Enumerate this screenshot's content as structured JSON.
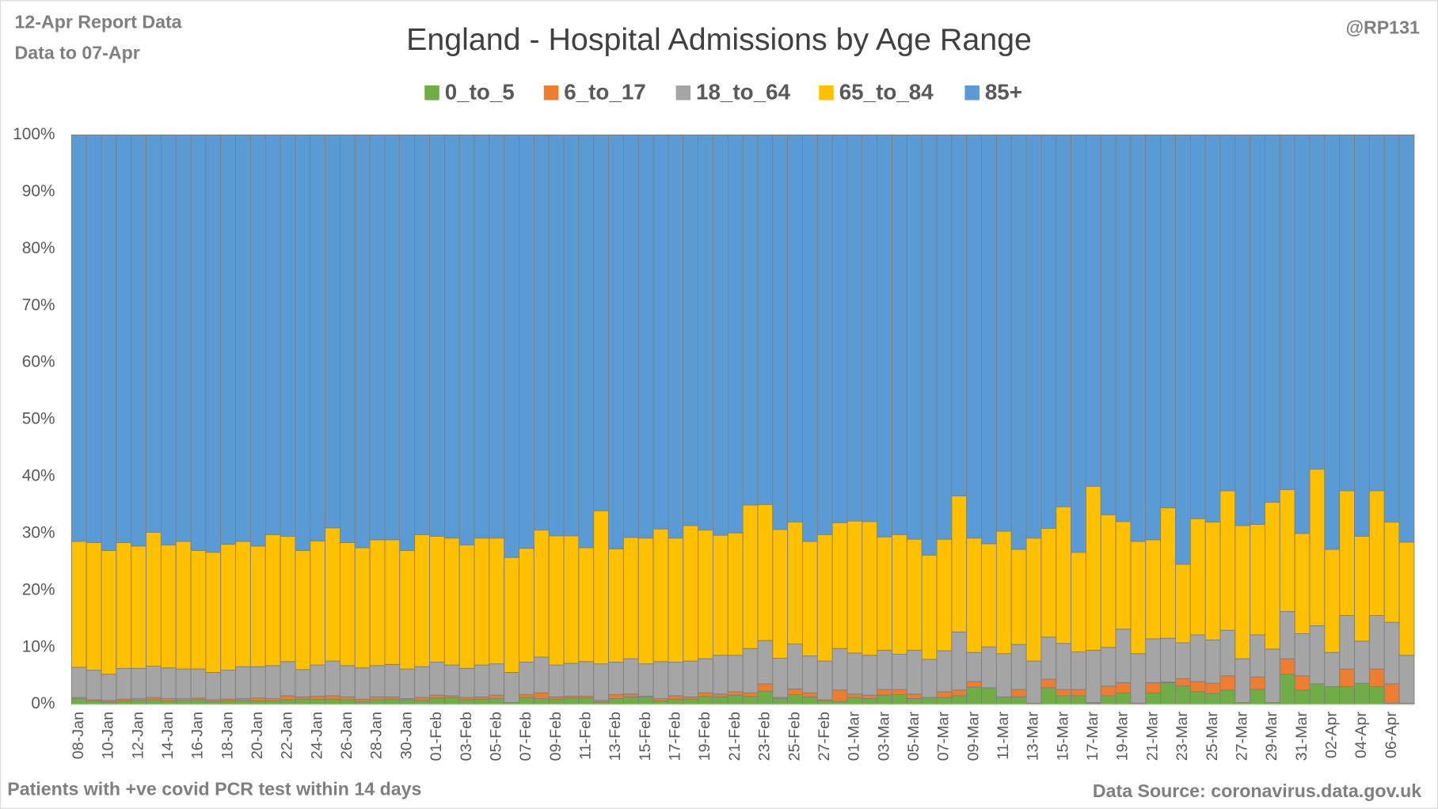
{
  "chart_data": {
    "type": "stacked_bar_percent",
    "title": "England - Hospital Admissions by Age Range",
    "report_note": "12-Apr Report Data",
    "data_note": "Data to 07-Apr",
    "author": "@RP131",
    "footnote": "Patients with  +ve covid PCR test within 14 days",
    "source": "Data Source: coronavirus.data.gov.uk",
    "categories": [
      "08-Jan",
      null,
      "10-Jan",
      null,
      "12-Jan",
      null,
      "14-Jan",
      null,
      "16-Jan",
      null,
      "18-Jan",
      null,
      "20-Jan",
      null,
      "22-Jan",
      null,
      "24-Jan",
      null,
      "26-Jan",
      null,
      "28-Jan",
      null,
      "30-Jan",
      null,
      "01-Feb",
      null,
      "03-Feb",
      null,
      "05-Feb",
      null,
      "07-Feb",
      null,
      "09-Feb",
      null,
      "11-Feb",
      null,
      "13-Feb",
      null,
      "15-Feb",
      null,
      "17-Feb",
      null,
      "19-Feb",
      null,
      "21-Feb",
      null,
      "23-Feb",
      null,
      "25-Feb",
      null,
      "27-Feb",
      null,
      "01-Mar",
      null,
      "03-Mar",
      null,
      "05-Mar",
      null,
      "07-Mar",
      null,
      "09-Mar",
      null,
      "11-Mar",
      null,
      "13-Mar",
      null,
      "15-Mar",
      null,
      "17-Mar",
      null,
      "19-Mar",
      null,
      "21-Mar",
      null,
      "23-Mar",
      null,
      "25-Mar",
      null,
      "27-Mar",
      null,
      "29-Mar",
      null,
      "31-Mar",
      null,
      "02-Apr",
      null,
      "04-Apr",
      null,
      "06-Apr",
      null
    ],
    "series": [
      {
        "name": "0_to_5",
        "color": "#70ad47",
        "values": [
          1.0,
          0.6,
          0.4,
          0.6,
          0.7,
          0.8,
          0.6,
          0.7,
          0.8,
          0.5,
          0.6,
          0.7,
          0.6,
          0.6,
          0.8,
          0.9,
          0.9,
          0.9,
          0.8,
          0.5,
          0.8,
          0.9,
          0.8,
          0.7,
          1.1,
          1.2,
          0.8,
          0.9,
          1.0,
          0.3,
          1.2,
          1.0,
          0.9,
          1.1,
          1.1,
          0.4,
          1.0,
          1.3,
          1.3,
          0.6,
          0.9,
          0.9,
          1.4,
          1.3,
          1.6,
          1.4,
          2.3,
          1.0,
          1.7,
          1.3,
          0.6,
          0.5,
          1.2,
          1.0,
          1.6,
          1.7,
          1.0,
          1.2,
          1.2,
          1.5,
          3.0,
          2.9,
          1.3,
          1.3,
          0.2,
          2.9,
          1.5,
          1.5,
          0.2,
          1.5,
          2.0,
          0.2,
          2.0,
          3.8,
          3.2,
          2.2,
          1.9,
          2.5,
          0.3,
          2.6,
          0.3,
          5.3,
          2.5,
          3.6,
          3.1,
          3.1,
          3.7,
          3.1,
          0.2,
          0.2
        ]
      },
      {
        "name": "6_to_17",
        "color": "#ed7d31",
        "values": [
          0.2,
          0.2,
          0.3,
          0.3,
          0.3,
          0.4,
          0.4,
          0.3,
          0.3,
          0.3,
          0.3,
          0.3,
          0.5,
          0.4,
          0.7,
          0.4,
          0.5,
          0.6,
          0.5,
          0.4,
          0.5,
          0.4,
          0.2,
          0.5,
          0.5,
          0.3,
          0.4,
          0.4,
          0.6,
          0.0,
          0.5,
          1.0,
          0.4,
          0.3,
          0.3,
          0.3,
          0.7,
          0.5,
          0.1,
          0.4,
          0.6,
          0.4,
          0.6,
          0.5,
          0.6,
          0.6,
          1.3,
          0.2,
          1.0,
          0.7,
          0.2,
          2.0,
          0.6,
          0.6,
          1.0,
          0.9,
          0.8,
          0.0,
          1.0,
          1.0,
          1.0,
          0.0,
          0.0,
          1.3,
          0.0,
          1.5,
          1.1,
          1.1,
          0.1,
          1.7,
          1.8,
          0.0,
          1.8,
          0.1,
          1.3,
          1.8,
          1.8,
          2.5,
          0.0,
          2.2,
          0.0,
          2.7,
          2.5,
          0.0,
          0.0,
          3.1,
          0.0,
          3.1,
          3.4,
          0.0
        ]
      },
      {
        "name": "18_to_64",
        "color": "#a5a5a5",
        "values": [
          5.3,
          5.2,
          4.6,
          5.4,
          5.3,
          5.5,
          5.4,
          5.2,
          5.1,
          4.8,
          5.1,
          5.6,
          5.5,
          5.8,
          6.0,
          4.8,
          5.5,
          6.1,
          5.5,
          5.5,
          5.5,
          5.7,
          5.2,
          5.4,
          5.8,
          5.4,
          5.1,
          5.6,
          5.5,
          5.3,
          5.7,
          6.3,
          5.6,
          5.8,
          6.1,
          6.4,
          5.7,
          6.2,
          5.7,
          6.5,
          5.9,
          6.3,
          6.0,
          6.8,
          6.4,
          7.8,
          7.6,
          6.9,
          7.9,
          6.5,
          6.8,
          7.3,
          7.2,
          7.0,
          6.9,
          6.2,
          7.7,
          6.7,
          7.2,
          10.2,
          5.1,
          7.2,
          7.6,
          7.9,
          7.4,
          7.4,
          8.1,
          6.6,
          9.2,
          6.8,
          9.4,
          8.7,
          7.7,
          7.7,
          6.3,
          8.2,
          7.6,
          8.0,
          7.7,
          7.4,
          9.4,
          8.3,
          7.4,
          10.2,
          6.0,
          9.4,
          7.4,
          9.4,
          10.8,
          8.4
        ]
      },
      {
        "name": "65_to_84",
        "color": "#ffc000",
        "values": [
          22.1,
          22.4,
          21.7,
          22.1,
          21.5,
          23.5,
          21.6,
          22.4,
          20.8,
          21.1,
          22.1,
          22.0,
          21.2,
          23.0,
          22.0,
          20.9,
          21.8,
          23.4,
          21.6,
          21.1,
          22.1,
          21.9,
          20.8,
          23.2,
          22.1,
          22.3,
          21.7,
          22.3,
          22.1,
          20.2,
          20.0,
          22.3,
          22.7,
          22.4,
          20.0,
          26.9,
          19.9,
          21.3,
          22.1,
          23.3,
          21.8,
          23.8,
          22.6,
          21.1,
          21.5,
          25.2,
          23.9,
          22.6,
          21.4,
          20.1,
          22.2,
          22.1,
          23.2,
          23.5,
          19.9,
          21.0,
          19.5,
          18.3,
          19.6,
          23.9,
          20.1,
          18.1,
          21.5,
          16.7,
          21.6,
          19.1,
          24.0,
          17.5,
          28.8,
          23.3,
          18.9,
          19.7,
          17.4,
          22.9,
          13.8,
          20.4,
          20.7,
          24.5,
          23.4,
          19.4,
          25.8,
          21.4,
          17.6,
          27.5,
          18.1,
          21.9,
          18.4,
          21.9,
          17.6,
          19.9
        ]
      },
      {
        "name": "85+",
        "color": "#5b9bd5",
        "values": [
          71.4,
          71.6,
          73.0,
          71.6,
          72.2,
          69.8,
          72.0,
          71.4,
          73.0,
          73.3,
          71.9,
          71.4,
          72.2,
          70.2,
          70.5,
          73.0,
          71.3,
          69.0,
          71.6,
          72.5,
          71.1,
          71.1,
          73.0,
          70.2,
          70.5,
          70.8,
          72.0,
          70.8,
          70.8,
          74.2,
          72.6,
          69.4,
          70.4,
          70.4,
          72.5,
          66.0,
          72.7,
          70.7,
          70.8,
          69.2,
          70.8,
          68.6,
          69.4,
          70.3,
          69.9,
          65.0,
          64.9,
          69.3,
          68.0,
          71.4,
          70.2,
          68.1,
          67.8,
          67.9,
          70.6,
          70.2,
          71.0,
          73.8,
          71.0,
          63.4,
          70.8,
          71.8,
          69.6,
          72.8,
          70.8,
          69.1,
          65.3,
          73.3,
          61.7,
          66.7,
          67.9,
          71.4,
          71.1,
          65.5,
          75.4,
          67.4,
          68.0,
          62.5,
          68.6,
          68.4,
          64.5,
          62.3,
          70.0,
          58.7,
          72.8,
          62.5,
          70.5,
          62.5,
          68.0,
          71.5
        ]
      }
    ],
    "ylim": [
      0,
      100
    ],
    "yticks": [
      {
        "value": 0,
        "label": "0%"
      },
      {
        "value": 10,
        "label": "10%"
      },
      {
        "value": 20,
        "label": "20%"
      },
      {
        "value": 30,
        "label": "30%"
      },
      {
        "value": 40,
        "label": "40%"
      },
      {
        "value": 50,
        "label": "50%"
      },
      {
        "value": 60,
        "label": "60%"
      },
      {
        "value": 70,
        "label": "70%"
      },
      {
        "value": 80,
        "label": "80%"
      },
      {
        "value": 90,
        "label": "90%"
      },
      {
        "value": 100,
        "label": "100%"
      }
    ],
    "grid": true,
    "legend": "top"
  }
}
